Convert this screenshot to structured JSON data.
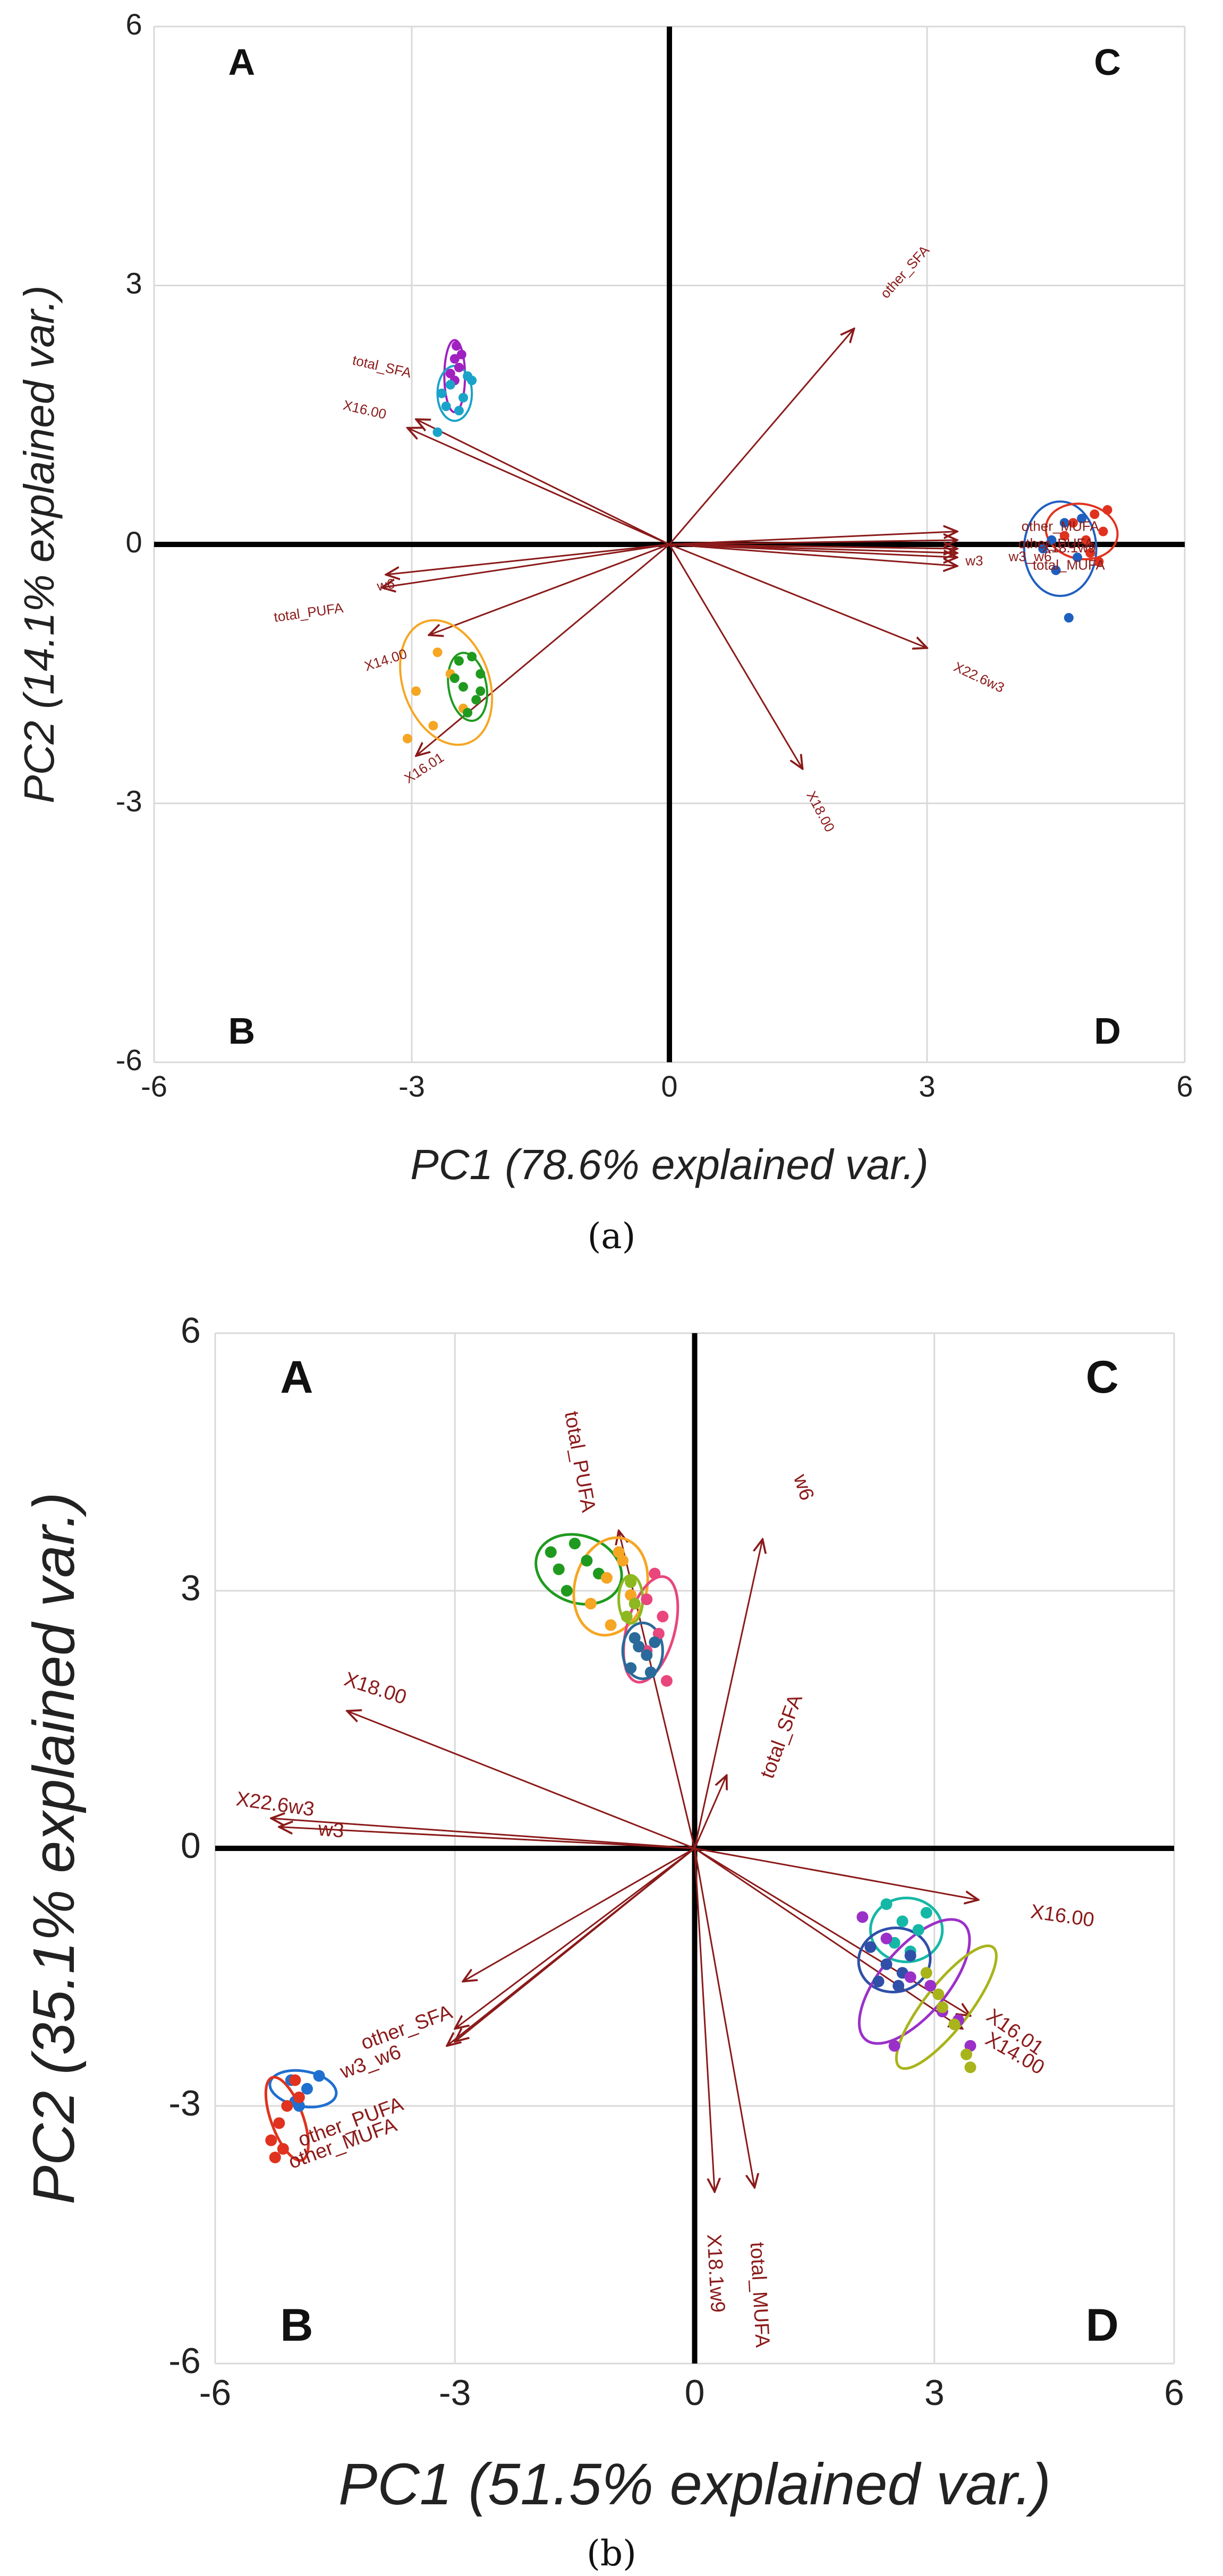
{
  "chart_data": [
    {
      "panel_label": "(a)",
      "type": "scatter",
      "subtype": "pca-biplot",
      "xlabel": "PC1 (78.6% explained var.)",
      "ylabel": "PC2 (14.1% explained var.)",
      "xlim": [
        -6,
        6
      ],
      "ylim": [
        -6,
        6
      ],
      "xticks": [
        -6,
        -3,
        0,
        3,
        6
      ],
      "yticks": [
        -6,
        -3,
        0,
        3,
        6
      ],
      "quadrants": {
        "top_left": "A",
        "bottom_left": "B",
        "top_right": "C",
        "bottom_right": "D"
      },
      "loadings": [
        {
          "label": "total_SFA",
          "x": -2.95,
          "y": 1.45,
          "lx": -3.35,
          "ly": 2.05,
          "angle": 13
        },
        {
          "label": "X16.00",
          "x": -3.05,
          "y": 1.35,
          "lx": -3.55,
          "ly": 1.55,
          "angle": 13
        },
        {
          "label": "w6",
          "x": -3.3,
          "y": -0.35,
          "lx": -3.3,
          "ly": -0.48,
          "angle": -10
        },
        {
          "label": "total_PUFA",
          "x": -3.35,
          "y": -0.5,
          "lx": -4.2,
          "ly": -0.8,
          "angle": -8
        },
        {
          "label": "X14.00",
          "x": -2.8,
          "y": -1.05,
          "lx": -3.3,
          "ly": -1.35,
          "angle": -18
        },
        {
          "label": "X16.01",
          "x": -2.95,
          "y": -2.45,
          "lx": -2.85,
          "ly": -2.6,
          "angle": -33
        },
        {
          "label": "other_SFA",
          "x": 2.15,
          "y": 2.5,
          "lx": 2.75,
          "ly": 3.15,
          "angle": -48
        },
        {
          "label": "other_MUFA",
          "x": 3.35,
          "y": 0.15,
          "lx": 4.55,
          "ly": 0.2,
          "angle": 0
        },
        {
          "label": "other_PUFA",
          "x": 3.35,
          "y": 0.05,
          "lx": 4.5,
          "ly": 0.0,
          "angle": 0
        },
        {
          "label": "X18.1w9",
          "x": 3.35,
          "y": -0.05,
          "lx": 4.65,
          "ly": -0.05,
          "angle": 0
        },
        {
          "label": "w3_w6",
          "x": 3.35,
          "y": -0.1,
          "lx": 4.2,
          "ly": -0.15,
          "angle": 0
        },
        {
          "label": "w3",
          "x": 3.35,
          "y": -0.15,
          "lx": 3.55,
          "ly": -0.2,
          "angle": 0
        },
        {
          "label": "total_MUFA",
          "x": 3.35,
          "y": -0.25,
          "lx": 4.65,
          "ly": -0.25,
          "angle": 0
        },
        {
          "label": "X22.6w3",
          "x": 3.0,
          "y": -1.2,
          "lx": 3.6,
          "ly": -1.55,
          "angle": 25
        },
        {
          "label": "X18.00",
          "x": 1.55,
          "y": -2.6,
          "lx": 1.75,
          "ly": -3.1,
          "angle": 62
        }
      ],
      "groups": [
        {
          "name": "purple",
          "color": "#a020c0",
          "ellipse": {
            "cx": -2.5,
            "cy": 1.95,
            "rx": 0.12,
            "ry": 0.42,
            "angle": 0
          },
          "points": [
            [
              -2.48,
              2.3
            ],
            [
              -2.5,
              2.15
            ],
            [
              -2.45,
              2.05
            ],
            [
              -2.55,
              1.98
            ],
            [
              -2.5,
              1.9
            ],
            [
              -2.42,
              2.2
            ]
          ]
        },
        {
          "name": "cyan",
          "color": "#1aa3c8",
          "ellipse": {
            "cx": -2.5,
            "cy": 1.75,
            "rx": 0.2,
            "ry": 0.32,
            "angle": 0
          },
          "points": [
            [
              -2.35,
              1.95
            ],
            [
              -2.55,
              1.85
            ],
            [
              -2.65,
              1.75
            ],
            [
              -2.4,
              1.7
            ],
            [
              -2.6,
              1.6
            ],
            [
              -2.7,
              1.3
            ],
            [
              -2.3,
              1.9
            ],
            [
              -2.45,
              1.55
            ]
          ]
        },
        {
          "name": "orange",
          "color": "#f5a623",
          "ellipse": {
            "cx": -2.6,
            "cy": -1.6,
            "rx": 0.5,
            "ry": 0.75,
            "angle": 20
          },
          "points": [
            [
              -2.7,
              -1.25
            ],
            [
              -2.95,
              -1.7
            ],
            [
              -2.55,
              -1.5
            ],
            [
              -3.05,
              -2.25
            ],
            [
              -2.4,
              -1.9
            ],
            [
              -2.75,
              -2.1
            ]
          ]
        },
        {
          "name": "green",
          "color": "#1f9a1f",
          "ellipse": {
            "cx": -2.35,
            "cy": -1.65,
            "rx": 0.22,
            "ry": 0.4,
            "angle": 10
          },
          "points": [
            [
              -2.45,
              -1.35
            ],
            [
              -2.3,
              -1.3
            ],
            [
              -2.2,
              -1.5
            ],
            [
              -2.4,
              -1.65
            ],
            [
              -2.25,
              -1.8
            ],
            [
              -2.35,
              -1.95
            ],
            [
              -2.5,
              -1.55
            ],
            [
              -2.2,
              -1.7
            ]
          ]
        },
        {
          "name": "blue",
          "color": "#1f5fbf",
          "ellipse": {
            "cx": 4.55,
            "cy": -0.05,
            "rx": 0.42,
            "ry": 0.55,
            "angle": 0
          },
          "points": [
            [
              4.6,
              0.25
            ],
            [
              4.45,
              0.05
            ],
            [
              4.75,
              -0.15
            ],
            [
              4.5,
              -0.3
            ],
            [
              4.65,
              -0.85
            ],
            [
              4.8,
              0.3
            ],
            [
              4.35,
              -0.05
            ]
          ]
        },
        {
          "name": "red",
          "color": "#e0321e",
          "ellipse": {
            "cx": 4.8,
            "cy": 0.15,
            "rx": 0.42,
            "ry": 0.32,
            "angle": -10
          },
          "points": [
            [
              4.95,
              0.35
            ],
            [
              5.1,
              0.4
            ],
            [
              4.7,
              0.25
            ],
            [
              4.85,
              0.05
            ],
            [
              5.05,
              0.15
            ],
            [
              4.6,
              0.1
            ],
            [
              5.0,
              -0.2
            ],
            [
              4.9,
              -0.1
            ]
          ]
        }
      ]
    },
    {
      "panel_label": "(b)",
      "type": "scatter",
      "subtype": "pca-biplot",
      "xlabel": "PC1 (51.5% explained var.)",
      "ylabel": "PC2 (35.1% explained var.)",
      "xlim": [
        -6,
        6
      ],
      "ylim": [
        -6,
        6
      ],
      "xticks": [
        -6,
        -3,
        0,
        3,
        6
      ],
      "yticks": [
        -6,
        -3,
        0,
        3,
        6
      ],
      "quadrants": {
        "top_left": "A",
        "bottom_left": "B",
        "top_right": "C",
        "bottom_right": "D"
      },
      "loadings": [
        {
          "label": "total_PUFA",
          "x": -0.95,
          "y": 3.7,
          "lx": -1.45,
          "ly": 4.5,
          "angle": 80
        },
        {
          "label": "w6",
          "x": 0.85,
          "y": 3.6,
          "lx": 1.35,
          "ly": 4.2,
          "angle": 72
        },
        {
          "label": "X18.00",
          "x": -4.35,
          "y": 1.6,
          "lx": -4.0,
          "ly": 1.85,
          "angle": 18
        },
        {
          "label": "total_SFA",
          "x": 0.4,
          "y": 0.85,
          "lx": 1.1,
          "ly": 1.3,
          "angle": -70
        },
        {
          "label": "X22.6w3",
          "x": -5.3,
          "y": 0.35,
          "lx": -5.25,
          "ly": 0.5,
          "angle": 8
        },
        {
          "label": "w3",
          "x": -5.2,
          "y": 0.25,
          "lx": -4.55,
          "ly": 0.2,
          "angle": 5
        },
        {
          "label": "X16.00",
          "x": 3.55,
          "y": -0.6,
          "lx": 4.6,
          "ly": -0.8,
          "angle": 8
        },
        {
          "label": "X16.01",
          "x": 3.45,
          "y": -1.95,
          "lx": 4.0,
          "ly": -2.15,
          "angle": 35
        },
        {
          "label": "X14.00",
          "x": 3.35,
          "y": -2.1,
          "lx": 4.0,
          "ly": -2.4,
          "angle": 30
        },
        {
          "label": "other_SFA",
          "x": -2.9,
          "y": -1.55,
          "lx": -3.6,
          "ly": -2.1,
          "angle": -20
        },
        {
          "label": "w3_w6",
          "x": -3.0,
          "y": -2.1,
          "lx": -4.05,
          "ly": -2.5,
          "angle": -20
        },
        {
          "label": "other_PUFA",
          "x": -3.0,
          "y": -2.25,
          "lx": -4.3,
          "ly": -3.2,
          "angle": -20
        },
        {
          "label": "other_MUFA",
          "x": -3.1,
          "y": -2.3,
          "lx": -4.4,
          "ly": -3.45,
          "angle": -20
        },
        {
          "label": "X18.1w9",
          "x": 0.25,
          "y": -4.0,
          "lx": 0.25,
          "ly": -4.95,
          "angle": 87
        },
        {
          "label": "total_MUFA",
          "x": 0.75,
          "y": -3.95,
          "lx": 0.8,
          "ly": -5.2,
          "angle": 87
        }
      ],
      "groups": [
        {
          "name": "green",
          "color": "#1f9a1f",
          "ellipse": {
            "cx": -1.45,
            "cy": 3.25,
            "rx": 0.55,
            "ry": 0.42,
            "angle": -20
          },
          "points": [
            [
              -1.8,
              3.45
            ],
            [
              -1.5,
              3.55
            ],
            [
              -1.35,
              3.35
            ],
            [
              -1.6,
              3.0
            ],
            [
              -1.2,
              3.2
            ],
            [
              -1.7,
              3.25
            ]
          ]
        },
        {
          "name": "orange",
          "color": "#f5a623",
          "ellipse": {
            "cx": -1.05,
            "cy": 3.05,
            "rx": 0.45,
            "ry": 0.62,
            "angle": -15
          },
          "points": [
            [
              -0.9,
              3.35
            ],
            [
              -1.1,
              3.15
            ],
            [
              -1.3,
              2.85
            ],
            [
              -0.8,
              2.95
            ],
            [
              -1.05,
              2.6
            ],
            [
              -0.95,
              3.45
            ]
          ]
        },
        {
          "name": "pink",
          "color": "#e8467c",
          "ellipse": {
            "cx": -0.55,
            "cy": 2.55,
            "rx": 0.3,
            "ry": 0.68,
            "angle": -15
          },
          "points": [
            [
              -0.5,
              3.2
            ],
            [
              -0.4,
              2.7
            ],
            [
              -0.6,
              2.9
            ],
            [
              -0.35,
              1.95
            ],
            [
              -0.6,
              2.3
            ],
            [
              -0.45,
              2.5
            ]
          ]
        },
        {
          "name": "steelblue",
          "color": "#2a6a9a",
          "ellipse": {
            "cx": -0.65,
            "cy": 2.3,
            "rx": 0.25,
            "ry": 0.35,
            "angle": 0
          },
          "points": [
            [
              -0.75,
              2.45
            ],
            [
              -0.6,
              2.25
            ],
            [
              -0.8,
              2.1
            ],
            [
              -0.55,
              2.05
            ],
            [
              -0.7,
              2.35
            ],
            [
              -0.5,
              2.4
            ]
          ]
        },
        {
          "name": "olive",
          "color": "#8db820",
          "ellipse": {
            "cx": -0.8,
            "cy": 2.9,
            "rx": 0.15,
            "ry": 0.3,
            "angle": 0
          },
          "points": [
            [
              -0.8,
              3.1
            ],
            [
              -0.75,
              2.85
            ],
            [
              -0.85,
              2.7
            ]
          ]
        },
        {
          "name": "blue",
          "color": "#1f6fd0",
          "ellipse": {
            "cx": -4.9,
            "cy": -2.8,
            "rx": 0.42,
            "ry": 0.22,
            "angle": -10
          },
          "points": [
            [
              -5.05,
              -2.7
            ],
            [
              -4.85,
              -2.8
            ],
            [
              -4.7,
              -2.65
            ],
            [
              -5.0,
              -2.95
            ],
            [
              -4.95,
              -3.0
            ]
          ]
        },
        {
          "name": "red",
          "color": "#e0321e",
          "ellipse": {
            "cx": -5.1,
            "cy": -3.15,
            "rx": 0.2,
            "ry": 0.55,
            "angle": 20
          },
          "points": [
            [
              -5.25,
              -3.6
            ],
            [
              -5.3,
              -3.4
            ],
            [
              -5.2,
              -3.2
            ],
            [
              -5.1,
              -3.0
            ],
            [
              -4.95,
              -2.9
            ],
            [
              -5.15,
              -3.5
            ],
            [
              -5.0,
              -2.7
            ]
          ]
        },
        {
          "name": "teal",
          "color": "#15b8a6",
          "ellipse": {
            "cx": 2.65,
            "cy": -0.95,
            "rx": 0.45,
            "ry": 0.4,
            "angle": 0
          },
          "points": [
            [
              2.4,
              -0.65
            ],
            [
              2.6,
              -0.85
            ],
            [
              2.8,
              -0.95
            ],
            [
              2.5,
              -1.1
            ],
            [
              2.9,
              -0.75
            ],
            [
              2.7,
              -1.2
            ]
          ]
        },
        {
          "name": "darkblue",
          "color": "#2f4fa8",
          "ellipse": {
            "cx": 2.5,
            "cy": -1.3,
            "rx": 0.45,
            "ry": 0.4,
            "angle": 10
          },
          "points": [
            [
              2.2,
              -1.15
            ],
            [
              2.4,
              -1.35
            ],
            [
              2.6,
              -1.45
            ],
            [
              2.3,
              -1.55
            ],
            [
              2.7,
              -1.25
            ],
            [
              2.55,
              -1.6
            ]
          ]
        },
        {
          "name": "purple",
          "color": "#9b30c8",
          "ellipse": {
            "cx": 2.75,
            "cy": -1.55,
            "rx": 0.95,
            "ry": 0.42,
            "angle": 50
          },
          "points": [
            [
              2.1,
              -0.8
            ],
            [
              2.4,
              -1.05
            ],
            [
              2.95,
              -1.6
            ],
            [
              3.3,
              -2.0
            ],
            [
              3.1,
              -1.9
            ],
            [
              2.7,
              -1.5
            ],
            [
              2.5,
              -2.3
            ],
            [
              3.45,
              -2.3
            ]
          ]
        },
        {
          "name": "yellowgreen",
          "color": "#a8b41a",
          "ellipse": {
            "cx": 3.15,
            "cy": -1.85,
            "rx": 0.95,
            "ry": 0.28,
            "angle": 52
          },
          "points": [
            [
              2.9,
              -1.45
            ],
            [
              3.05,
              -1.7
            ],
            [
              3.25,
              -2.05
            ],
            [
              3.4,
              -2.4
            ],
            [
              3.45,
              -2.55
            ],
            [
              3.1,
              -1.85
            ]
          ]
        }
      ]
    }
  ]
}
